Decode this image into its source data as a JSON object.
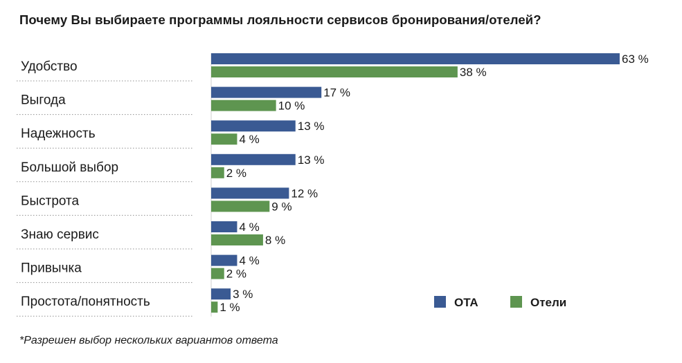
{
  "chart_data": {
    "type": "bar",
    "orientation": "horizontal",
    "title": "Почему Вы выбираете программы лояльности сервисов бронирования/отелей?",
    "footnote": "*Разрешен выбор нескольких вариантов ответа",
    "categories": [
      "Удобство",
      "Выгода",
      "Надежность",
      "Большой выбор",
      "Быстрота",
      "Знаю сервис",
      "Привычка",
      "Простота/понятность"
    ],
    "series": [
      {
        "name": "OTA",
        "color": "#3a5a93",
        "values": [
          63,
          17,
          13,
          13,
          12,
          4,
          4,
          3
        ]
      },
      {
        "name": "Отели",
        "color": "#5e9550",
        "values": [
          38,
          10,
          4,
          2,
          9,
          8,
          2,
          1
        ]
      }
    ],
    "value_suffix": " %",
    "xlim": [
      0,
      63
    ],
    "grid": false,
    "legend_position": "bottom-right"
  }
}
